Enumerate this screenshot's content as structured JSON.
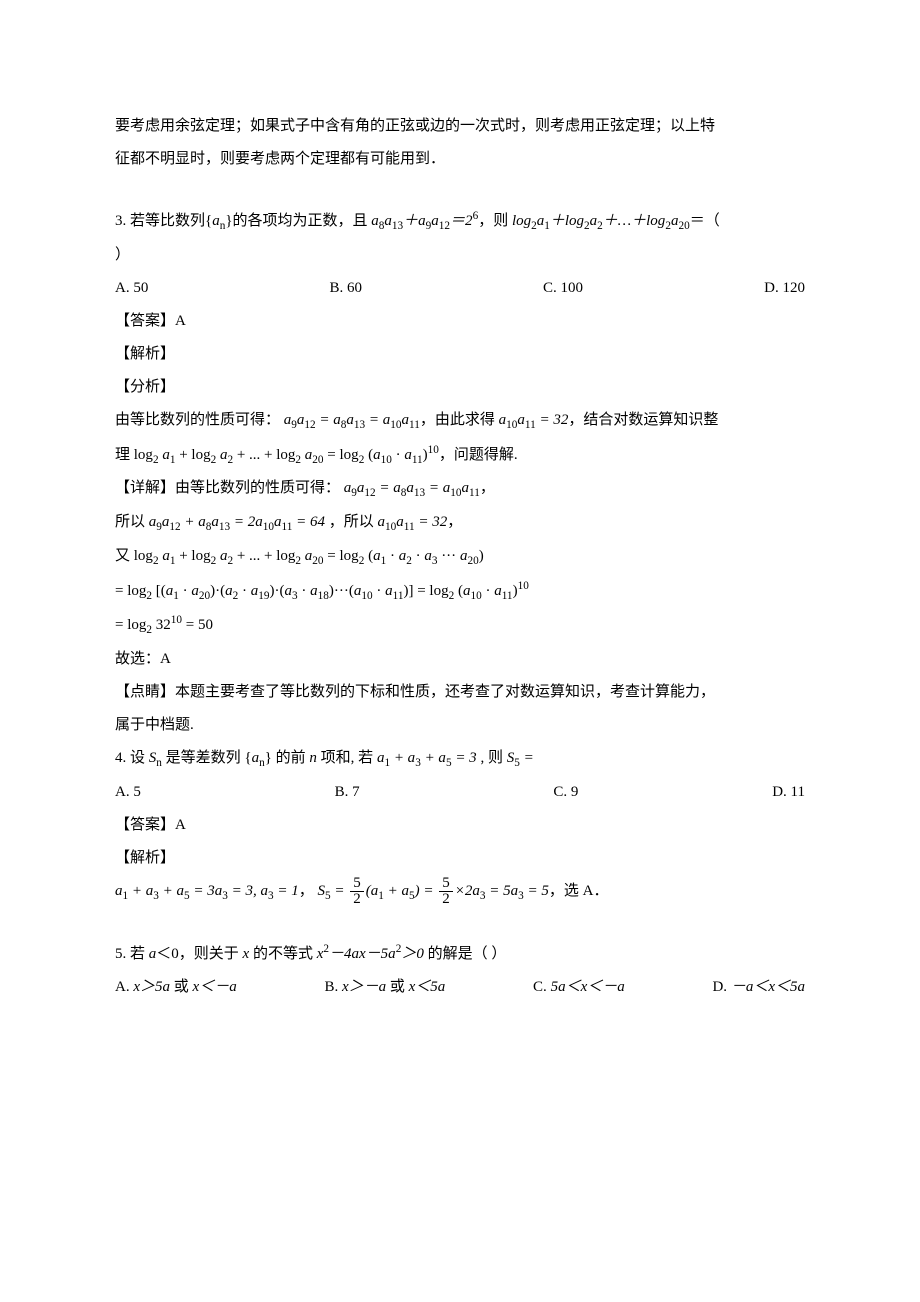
{
  "intro": {
    "line1": "要考虑用余弦定理；如果式子中含有角的正弦或边的一次式时，则考虑用正弦定理；以上特",
    "line2": "征都不明显时，则要考虑两个定理都有可能用到．"
  },
  "q3": {
    "stem_pre": "3. 若等比数列{",
    "stem_an": "a",
    "stem_post1": "}的各项均为正数，且 ",
    "stem_eq": "a₈a₁₃＋a₉a₁₂＝2⁶",
    "stem_post2": "，则 ",
    "stem_log": "log₂a₁＋log₂a₂＋…＋log₂a₂₀＝（",
    "stem_close": "）",
    "optA": "A.  50",
    "optB": "B.  60",
    "optC": "C.  100",
    "optD": "D.  120",
    "ans": "【答案】A",
    "jiexi": "【解析】",
    "fenxi": "【分析】",
    "fenxi_body_1": "由等比数列的性质可得：",
    "fenxi_eq1": "a₉a₁₂ = a₈a₁₃ = a₁₀a₁₁",
    "fenxi_body_2": "，由此求得",
    "fenxi_eq2": "a₁₀a₁₁ = 32",
    "fenxi_body_3": "，结合对数运算知识整",
    "fenxi_line2_pre": "理",
    "fenxi_line2_eq": "log₂ a₁ + log₂ a₂ + ... + log₂ a₂₀ = log₂ (a₁₀ · a₁₁)¹⁰",
    "fenxi_line2_post": "，问题得解.",
    "xiangjie": "【详解】由等比数列的性质可得：",
    "xiangjie_eq1": "a₉a₁₂ = a₈a₁₃ = a₁₀a₁₁",
    "xiangjie_post1": "，",
    "so1_pre": "所以",
    "so1_eq1": "a₉a₁₂ + a₈a₁₃ = 2a₁₀a₁₁ = 64",
    "so1_mid": "，所以",
    "so1_eq2": "a₁₀a₁₁ = 32",
    "so1_post": "，",
    "you_pre": "又",
    "you_eq": "log₂ a₁ + log₂ a₂ + ... + log₂ a₂₀ = log₂ (a₁ · a₂ · a₃ ··· a₂₀)",
    "eq_line2": "= log₂ [(a₁ · a₂₀)·(a₂ · a₁₉)·(a₃ · a₁₈)···(a₁₀ · a₁₁)] = log₂ (a₁₀ · a₁₁)¹⁰",
    "eq_line3": "= log₂ 32¹⁰ = 50",
    "guxuan": "故选：A",
    "dianjing1": "【点睛】本题主要考查了等比数列的下标和性质，还考查了对数运算知识，考查计算能力，",
    "dianjing2": "属于中档题."
  },
  "q4": {
    "stem_pre": "4. 设",
    "stem_sn": "Sₙ",
    "stem_mid1": " 是等差数列 {",
    "stem_an": "aₙ",
    "stem_mid2": "} 的前",
    "stem_n": " n ",
    "stem_mid3": "项和, 若",
    "stem_eq": " a₁ + a₃ + a₅ = 3 ",
    "stem_post": ", 则",
    "stem_s5": " S₅ =",
    "optA": "A.  5",
    "optB": "B.  7",
    "optC": "C.  9",
    "optD": "D.  11",
    "ans": "【答案】A",
    "jiexi": "【解析】",
    "sol_eq1": "a₁ + a₃ + a₅ = 3a₃ = 3, a₃ = 1",
    "sol_mid1": "，",
    "sol_s5": "S₅ = ",
    "sol_frac_num": "5",
    "sol_frac_den": "2",
    "sol_eq2": "(a₁ + a₅) = ",
    "sol_eq3": "×2a₃ = 5a₃ = 5",
    "sol_post": "，选 A．"
  },
  "q5": {
    "stem_pre": "5. 若 ",
    "stem_a": "a",
    "stem_mid1": "＜0，则关于 ",
    "stem_x": "x",
    "stem_mid2": " 的不等式 ",
    "stem_eq": "x²－4ax－5a²＞0",
    "stem_post": " 的解是（     ）",
    "optA_pre": "A.  ",
    "optA_eq": "x＞5a 或 x＜－a",
    "optB_pre": "B.  ",
    "optB_eq": "x＞－a 或 x＜5a",
    "optC_pre": "C.  ",
    "optC_eq": "5a＜x＜－a",
    "optD_pre": "D.  ",
    "optD_eq": "－a＜x＜5a"
  }
}
